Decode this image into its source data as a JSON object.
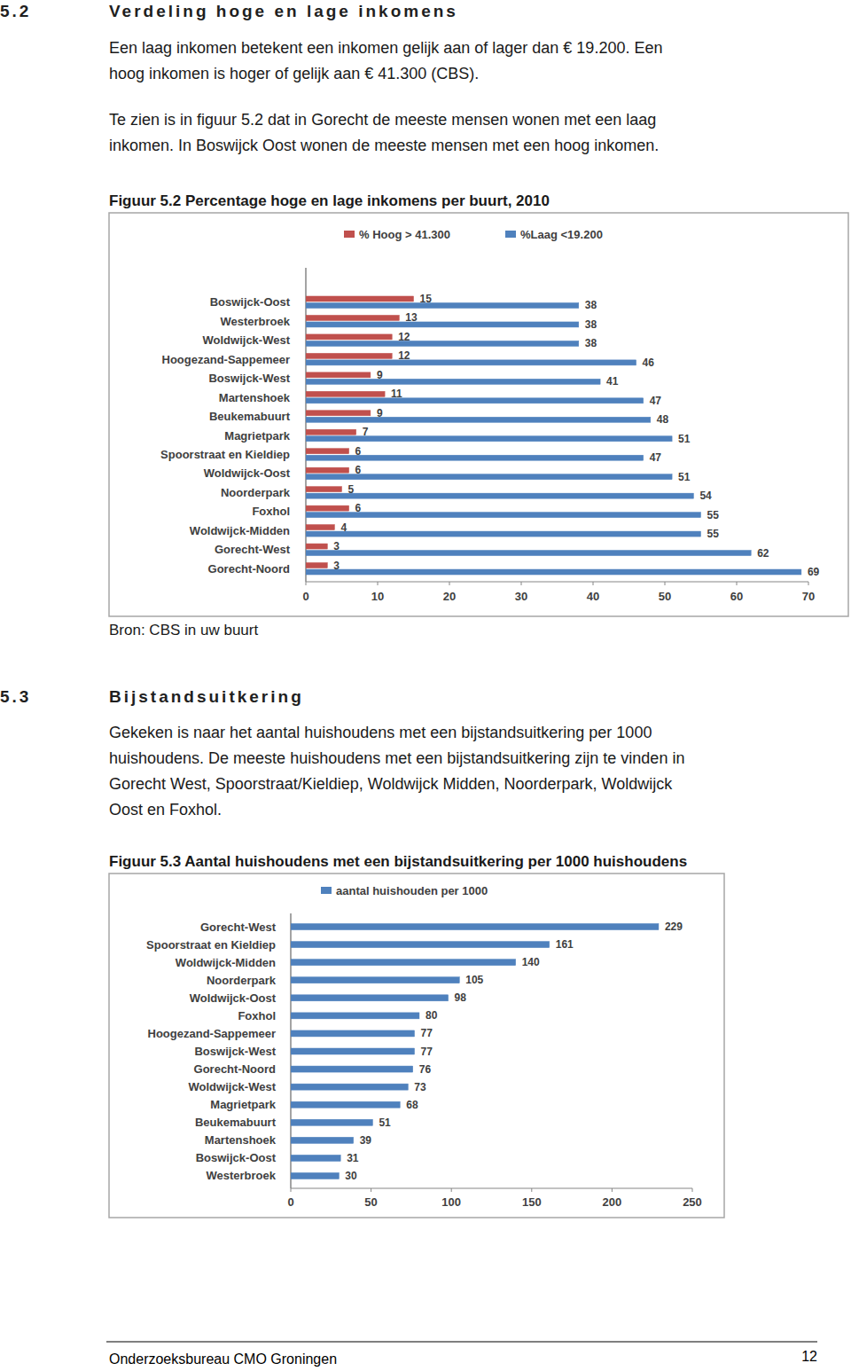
{
  "sections": [
    {
      "number": "5.2",
      "title": "Verdeling hoge en lage inkomens",
      "paragraphs": [
        [
          "Een laag inkomen betekent een inkomen gelijk aan of lager dan € 19.200. Een",
          "hoog inkomen is hoger of gelijk aan € 41.300 (CBS)."
        ],
        [
          "Te zien is in figuur 5.2 dat in Gorecht de meeste mensen wonen met een laag",
          "inkomen. In Boswijck Oost wonen de meeste mensen met een hoog inkomen."
        ]
      ],
      "figure_caption": "Figuur 5.2 Percentage hoge en lage inkomens per buurt, 2010",
      "source": "Bron: CBS in uw buurt"
    },
    {
      "number": "5.3",
      "title": "Bijstandsuitkering",
      "paragraphs": [
        [
          "Gekeken is naar het aantal huishoudens met een bijstandsuitkering per 1000",
          "huishoudens. De meeste huishoudens met een bijstandsuitkering zijn te vinden in",
          "Gorecht West, Spoorstraat/Kieldiep, Woldwijck Midden, Noorderpark, Woldwijck",
          "Oost en Foxhol."
        ]
      ],
      "figure_caption": "Figuur 5.3 Aantal huishoudens met een bijstandsuitkering per 1000 huishoudens"
    }
  ],
  "chart_data": [
    {
      "type": "bar",
      "orientation": "horizontal",
      "categories": [
        "Boswijck-Oost",
        "Westerbroek",
        "Woldwijck-West",
        "Hoogezand-Sappemeer",
        "Boswijck-West",
        "Martenshoek",
        "Beukemabuurt",
        "Magrietpark",
        "Spoorstraat en Kieldiep",
        "Woldwijck-Oost",
        "Noorderpark",
        "Foxhol",
        "Woldwijck-Midden",
        "Gorecht-West",
        "Gorecht-Noord"
      ],
      "series": [
        {
          "name": "% Hoog > 41.300",
          "color": "#c0504d",
          "values": [
            15,
            13,
            12,
            12,
            9,
            11,
            9,
            7,
            6,
            6,
            5,
            6,
            4,
            3,
            3
          ]
        },
        {
          "name": "%Laag <19.200",
          "color": "#4f81bd",
          "values": [
            38,
            38,
            38,
            46,
            41,
            47,
            48,
            51,
            47,
            51,
            54,
            55,
            55,
            62,
            69
          ]
        }
      ],
      "xlim": [
        0,
        70
      ],
      "xticks": [
        0,
        10,
        20,
        30,
        40,
        50,
        60,
        70
      ],
      "grid": false,
      "legend": "top",
      "data_labels": true
    },
    {
      "type": "bar",
      "orientation": "horizontal",
      "categories": [
        "Gorecht-West",
        "Spoorstraat en Kieldiep",
        "Woldwijck-Midden",
        "Noorderpark",
        "Woldwijck-Oost",
        "Foxhol",
        "Hoogezand-Sappemeer",
        "Boswijck-West",
        "Gorecht-Noord",
        "Woldwijck-West",
        "Magrietpark",
        "Beukemabuurt",
        "Martenshoek",
        "Boswijck-Oost",
        "Westerbroek"
      ],
      "series": [
        {
          "name": "aantal huishouden per 1000",
          "color": "#4f81bd",
          "values": [
            229,
            161,
            140,
            105,
            98,
            80,
            77,
            77,
            76,
            73,
            68,
            51,
            39,
            31,
            30
          ]
        }
      ],
      "xlim": [
        0,
        250
      ],
      "xticks": [
        0,
        50,
        100,
        150,
        200,
        250
      ],
      "grid": false,
      "legend": "top",
      "data_labels": true
    }
  ],
  "footer": {
    "left": "Onderzoeksbureau CMO Groningen",
    "page": "12"
  }
}
